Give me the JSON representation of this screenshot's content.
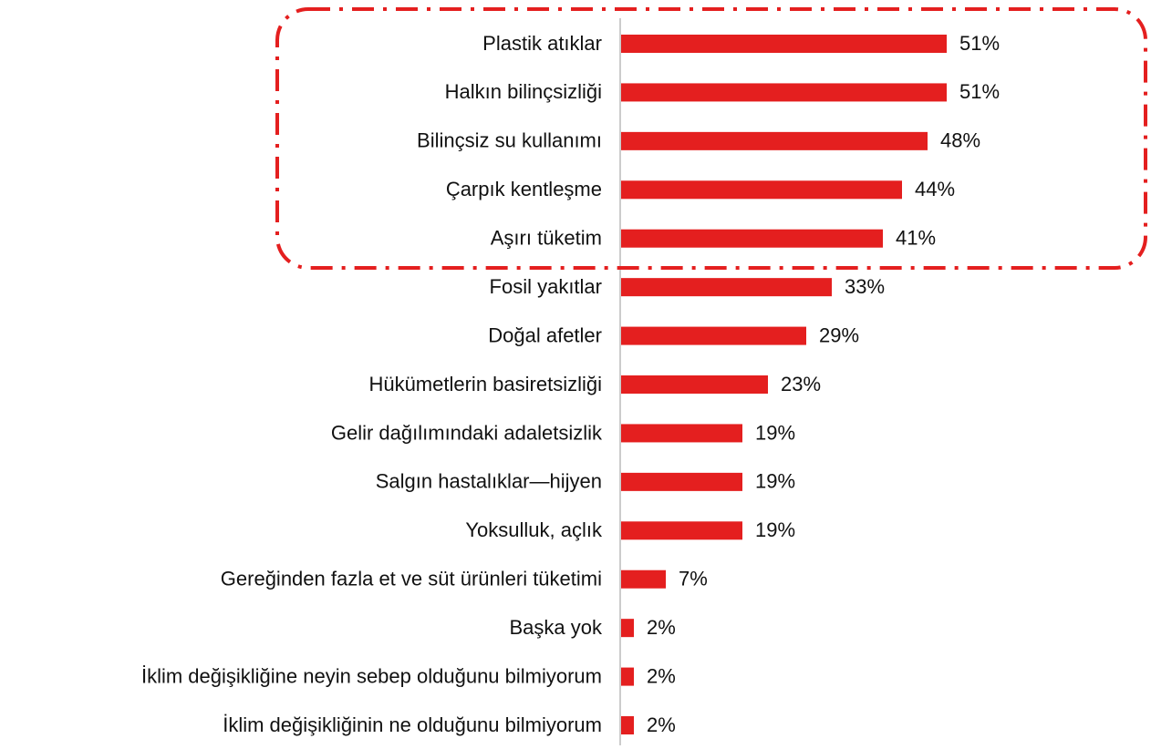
{
  "chart_data": {
    "type": "bar",
    "orientation": "horizontal",
    "color": "#e41f1f",
    "categories": [
      "Plastik atıklar",
      "Halkın bilinçsizliği",
      "Bilinçsiz su kullanımı",
      "Çarpık kentleşme",
      "Aşırı tüketim",
      "Fosil yakıtlar",
      "Doğal afetler",
      "Hükümetlerin basiretsizliği",
      "Gelir dağılımındaki adaletsizlik",
      "Salgın hastalıklar—hijyen",
      "Yoksulluk, açlık",
      "Gereğinden fazla et ve süt ürünleri tüketimi",
      "Başka yok",
      "İklim değişikliğine neyin sebep olduğunu bilmiyorum",
      "İklim değişikliğinin ne olduğunu bilmiyorum"
    ],
    "values": [
      51,
      51,
      48,
      44,
      41,
      33,
      29,
      23,
      19,
      19,
      19,
      7,
      2,
      2,
      2
    ],
    "value_labels": [
      "51%",
      "51%",
      "48%",
      "44%",
      "41%",
      "33%",
      "29%",
      "23%",
      "19%",
      "19%",
      "19%",
      "7%",
      "2%",
      "2%",
      "2%"
    ]
  }
}
